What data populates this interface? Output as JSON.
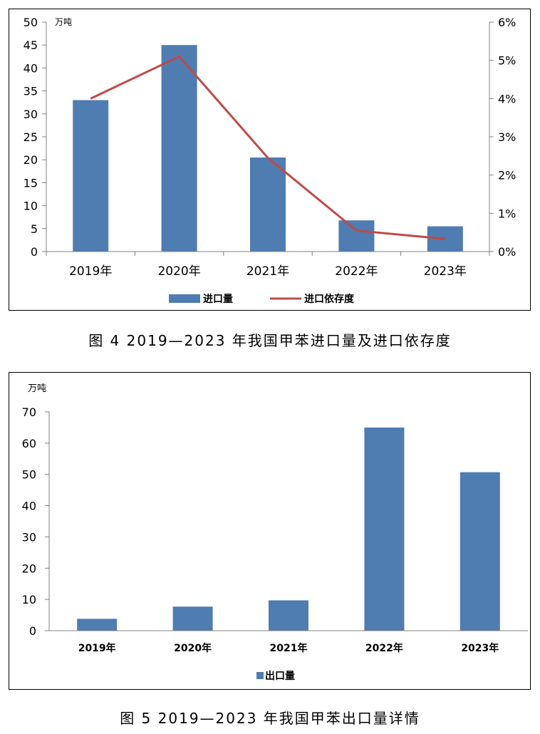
{
  "chart_data": [
    {
      "type": "bar",
      "unit_label": "万吨",
      "categories": [
        "2019年",
        "2020年",
        "2021年",
        "2022年",
        "2023年"
      ],
      "series": [
        {
          "name": "进口量",
          "kind": "bar",
          "axis": "left",
          "color": "#4F7CB1",
          "values": [
            33,
            45,
            20.5,
            6.8,
            5.5
          ]
        },
        {
          "name": "进口依存度",
          "kind": "line",
          "axis": "right",
          "color": "#BE4B48",
          "values": [
            4.0,
            5.1,
            2.45,
            0.55,
            0.33
          ]
        }
      ],
      "left_axis": {
        "min": 0,
        "max": 50,
        "step": 5,
        "ticks": [
          "0",
          "5",
          "10",
          "15",
          "20",
          "25",
          "30",
          "35",
          "40",
          "45",
          "50"
        ]
      },
      "right_axis": {
        "min": 0,
        "max": 6,
        "step": 1,
        "ticks": [
          "0%",
          "1%",
          "2%",
          "3%",
          "4%",
          "5%",
          "6%"
        ]
      },
      "grid": false,
      "legend_position": "bottom"
    },
    {
      "type": "bar",
      "unit_label": "万吨",
      "categories": [
        "2019年",
        "2020年",
        "2021年",
        "2022年",
        "2023年"
      ],
      "series": [
        {
          "name": "出口量",
          "color": "#4F7CB1",
          "values": [
            3.8,
            7.7,
            9.7,
            65,
            50.7
          ]
        }
      ],
      "left_axis": {
        "min": 0,
        "max": 70,
        "step": 10,
        "ticks": [
          "0",
          "10",
          "20",
          "30",
          "40",
          "50",
          "60",
          "70"
        ]
      },
      "grid": false,
      "legend_position": "bottom"
    }
  ],
  "captions": {
    "fig4": "图 4  2019—2023 年我国甲苯进口量及进口依存度",
    "fig5": "图 5  2019—2023 年我国甲苯出口量详情"
  }
}
